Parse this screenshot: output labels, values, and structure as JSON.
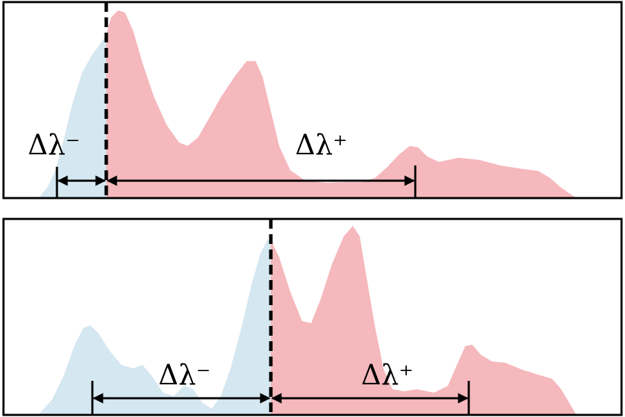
{
  "panels": [
    {
      "minus_label": "Δλ⁻",
      "plus_label": "Δλ⁺"
    },
    {
      "minus_label": "Δλ⁻",
      "plus_label": "Δλ⁺"
    }
  ]
}
